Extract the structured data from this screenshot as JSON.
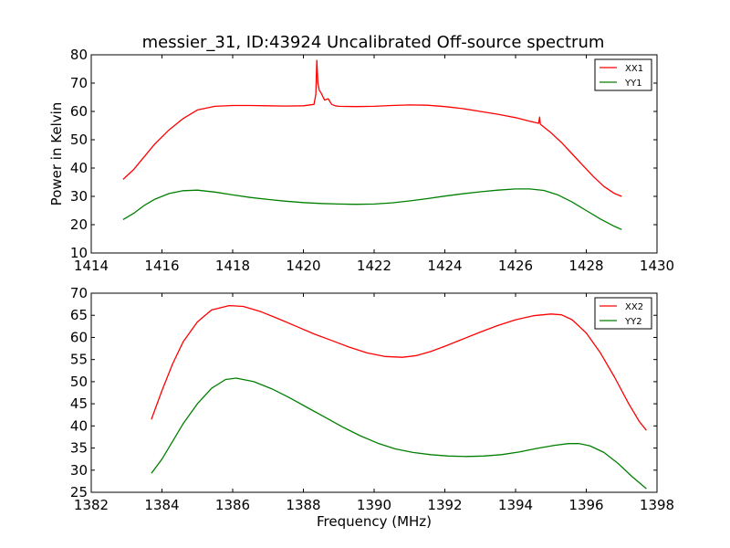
{
  "figure": {
    "title": "messier_31, ID:43924 Uncalibrated Off-source spectrum"
  },
  "chart_data": [
    {
      "type": "line",
      "title": "messier_31, ID:43924 Uncalibrated Off-source spectrum",
      "xlabel": "",
      "ylabel": "Power in Kelvin",
      "xlim": [
        1414,
        1430
      ],
      "ylim": [
        10,
        80
      ],
      "xticks": [
        1414,
        1416,
        1418,
        1420,
        1422,
        1424,
        1426,
        1428,
        1430
      ],
      "yticks": [
        10,
        20,
        30,
        40,
        50,
        60,
        70,
        80
      ],
      "grid": false,
      "legend": {
        "placement": "top-right"
      },
      "series": [
        {
          "name": "XX1",
          "color": "#ff0000",
          "x": [
            1414.9,
            1415.2,
            1415.5,
            1415.8,
            1416.2,
            1416.6,
            1417.0,
            1417.5,
            1418.0,
            1418.5,
            1419.0,
            1419.5,
            1420.0,
            1420.3,
            1420.35,
            1420.38,
            1420.41,
            1420.45,
            1420.5,
            1420.6,
            1420.7,
            1420.8,
            1420.9,
            1421.0,
            1421.5,
            1422.0,
            1422.5,
            1423.0,
            1423.5,
            1424.0,
            1424.5,
            1425.0,
            1425.5,
            1426.0,
            1426.4,
            1426.65,
            1426.68,
            1426.7,
            1426.8,
            1427.0,
            1427.3,
            1427.6,
            1427.9,
            1428.2,
            1428.5,
            1428.8,
            1429.0
          ],
          "y": [
            36.0,
            39.5,
            44.0,
            48.5,
            53.5,
            57.5,
            60.5,
            61.8,
            62.1,
            62.1,
            62.0,
            61.9,
            62.0,
            62.5,
            66.0,
            78.0,
            70.0,
            67.5,
            66.5,
            64.0,
            64.5,
            62.5,
            62.0,
            61.8,
            61.7,
            61.8,
            62.1,
            62.3,
            62.2,
            61.7,
            61.0,
            60.0,
            59.0,
            57.8,
            56.5,
            55.8,
            58.0,
            55.5,
            54.5,
            52.5,
            49.0,
            45.0,
            41.0,
            37.0,
            33.5,
            31.0,
            30.0
          ]
        },
        {
          "name": "YY1",
          "color": "#008000",
          "x": [
            1414.9,
            1415.2,
            1415.5,
            1415.8,
            1416.2,
            1416.6,
            1417.0,
            1417.5,
            1418.0,
            1418.5,
            1419.0,
            1419.5,
            1420.0,
            1420.5,
            1421.0,
            1421.5,
            1422.0,
            1422.5,
            1423.0,
            1423.5,
            1424.0,
            1424.5,
            1425.0,
            1425.5,
            1426.0,
            1426.4,
            1426.8,
            1427.2,
            1427.6,
            1428.0,
            1428.4,
            1428.8,
            1429.0
          ],
          "y": [
            21.8,
            24.0,
            26.8,
            29.0,
            31.0,
            32.0,
            32.2,
            31.5,
            30.5,
            29.6,
            28.9,
            28.3,
            27.8,
            27.5,
            27.3,
            27.2,
            27.3,
            27.7,
            28.4,
            29.2,
            30.1,
            30.9,
            31.6,
            32.2,
            32.6,
            32.6,
            32.1,
            30.5,
            28.0,
            25.0,
            22.0,
            19.4,
            18.3
          ]
        }
      ]
    },
    {
      "type": "line",
      "title": "",
      "xlabel": "Frequency (MHz)",
      "ylabel": "",
      "xlim": [
        1382,
        1398
      ],
      "ylim": [
        25,
        70
      ],
      "xticks": [
        1382,
        1384,
        1386,
        1388,
        1390,
        1392,
        1394,
        1396,
        1398
      ],
      "yticks": [
        25,
        30,
        35,
        40,
        45,
        50,
        55,
        60,
        65,
        70
      ],
      "grid": false,
      "legend": {
        "placement": "top-right"
      },
      "series": [
        {
          "name": "XX2",
          "color": "#ff0000",
          "x": [
            1383.7,
            1384.0,
            1384.3,
            1384.6,
            1385.0,
            1385.4,
            1385.9,
            1386.3,
            1386.8,
            1387.3,
            1387.8,
            1388.3,
            1388.8,
            1389.3,
            1389.8,
            1390.3,
            1390.8,
            1391.2,
            1391.6,
            1392.0,
            1392.5,
            1393.0,
            1393.5,
            1394.0,
            1394.5,
            1395.0,
            1395.3,
            1395.6,
            1396.0,
            1396.4,
            1396.8,
            1397.2,
            1397.5,
            1397.7
          ],
          "y": [
            41.5,
            48.0,
            54.0,
            59.0,
            63.5,
            66.2,
            67.2,
            67.0,
            65.8,
            64.2,
            62.5,
            60.8,
            59.3,
            57.8,
            56.5,
            55.7,
            55.5,
            55.9,
            56.8,
            58.0,
            59.6,
            61.2,
            62.7,
            64.0,
            64.9,
            65.3,
            65.1,
            64.0,
            61.0,
            56.5,
            51.0,
            45.0,
            41.0,
            39.0
          ]
        },
        {
          "name": "YY2",
          "color": "#008000",
          "x": [
            1383.7,
            1384.0,
            1384.3,
            1384.6,
            1385.0,
            1385.4,
            1385.8,
            1386.1,
            1386.6,
            1387.1,
            1387.6,
            1388.1,
            1388.6,
            1389.1,
            1389.6,
            1390.1,
            1390.6,
            1391.1,
            1391.6,
            1392.1,
            1392.6,
            1393.1,
            1393.6,
            1394.1,
            1394.6,
            1395.1,
            1395.5,
            1395.8,
            1396.1,
            1396.5,
            1396.9,
            1397.3,
            1397.7
          ],
          "y": [
            29.3,
            32.5,
            36.5,
            40.5,
            45.0,
            48.5,
            50.5,
            50.8,
            50.0,
            48.4,
            46.4,
            44.2,
            42.0,
            39.8,
            37.8,
            36.1,
            34.8,
            34.0,
            33.5,
            33.2,
            33.1,
            33.2,
            33.5,
            34.1,
            34.9,
            35.6,
            36.0,
            36.0,
            35.5,
            34.0,
            31.5,
            28.5,
            25.8
          ]
        }
      ]
    }
  ]
}
